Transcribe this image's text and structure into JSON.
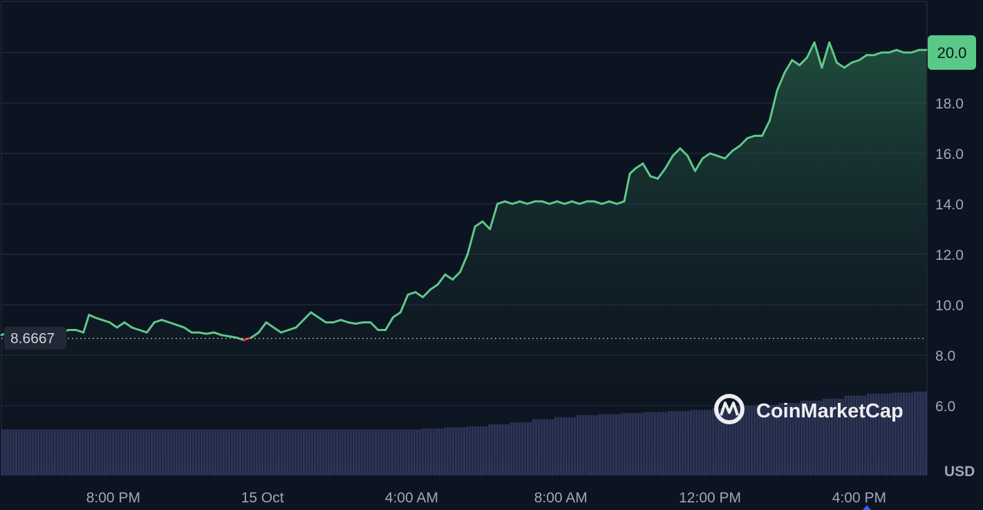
{
  "chart_data": {
    "type": "area",
    "currency": "USD",
    "ylim": [
      3.6,
      21.9
    ],
    "y_ticks": [
      "6.0",
      "8.0",
      "10.0",
      "12.0",
      "14.0",
      "16.0",
      "18.0",
      "20.0"
    ],
    "x_labels": [
      "8:00 PM",
      "15 Oct",
      "4:00 AM",
      "8:00 AM",
      "12:00 PM",
      "4:00 PM"
    ],
    "x_label_positions_hours": [
      3,
      7,
      11,
      15,
      19,
      23
    ],
    "x_range_hours": [
      0,
      24.8
    ],
    "reference_price": 8.6667,
    "reference_label": "8.6667",
    "current_price_label": "20.0",
    "grid": true,
    "series": [
      {
        "points": [
          [
            0.0,
            8.8
          ],
          [
            0.2,
            8.9
          ],
          [
            0.4,
            8.8
          ],
          [
            0.6,
            8.8
          ],
          [
            0.8,
            8.8
          ],
          [
            1.0,
            8.9
          ],
          [
            1.2,
            8.9
          ],
          [
            1.4,
            8.8
          ],
          [
            1.6,
            8.9
          ],
          [
            1.8,
            9.0
          ],
          [
            2.0,
            9.0
          ],
          [
            2.2,
            8.9
          ],
          [
            2.35,
            9.6
          ],
          [
            2.5,
            9.5
          ],
          [
            2.7,
            9.4
          ],
          [
            2.9,
            9.3
          ],
          [
            3.1,
            9.1
          ],
          [
            3.3,
            9.3
          ],
          [
            3.5,
            9.1
          ],
          [
            3.7,
            9.0
          ],
          [
            3.9,
            8.9
          ],
          [
            4.1,
            9.3
          ],
          [
            4.3,
            9.4
          ],
          [
            4.5,
            9.3
          ],
          [
            4.7,
            9.2
          ],
          [
            4.9,
            9.1
          ],
          [
            5.1,
            8.9
          ],
          [
            5.3,
            8.9
          ],
          [
            5.5,
            8.85
          ],
          [
            5.7,
            8.9
          ],
          [
            5.9,
            8.8
          ],
          [
            6.1,
            8.75
          ],
          [
            6.3,
            8.7
          ],
          [
            6.5,
            8.6
          ],
          [
            6.7,
            8.7
          ],
          [
            6.9,
            8.9
          ],
          [
            7.1,
            9.3
          ],
          [
            7.3,
            9.1
          ],
          [
            7.5,
            8.9
          ],
          [
            7.7,
            9.0
          ],
          [
            7.9,
            9.1
          ],
          [
            8.1,
            9.4
          ],
          [
            8.3,
            9.7
          ],
          [
            8.5,
            9.5
          ],
          [
            8.7,
            9.3
          ],
          [
            8.9,
            9.3
          ],
          [
            9.1,
            9.4
          ],
          [
            9.3,
            9.3
          ],
          [
            9.5,
            9.25
          ],
          [
            9.7,
            9.3
          ],
          [
            9.9,
            9.3
          ],
          [
            10.1,
            9.0
          ],
          [
            10.3,
            9.0
          ],
          [
            10.5,
            9.5
          ],
          [
            10.7,
            9.7
          ],
          [
            10.9,
            10.4
          ],
          [
            11.1,
            10.5
          ],
          [
            11.3,
            10.3
          ],
          [
            11.5,
            10.6
          ],
          [
            11.7,
            10.8
          ],
          [
            11.9,
            11.2
          ],
          [
            12.1,
            11.0
          ],
          [
            12.3,
            11.3
          ],
          [
            12.5,
            12.0
          ],
          [
            12.7,
            13.1
          ],
          [
            12.9,
            13.3
          ],
          [
            13.1,
            13.0
          ],
          [
            13.3,
            14.0
          ],
          [
            13.5,
            14.1
          ],
          [
            13.7,
            14.0
          ],
          [
            13.9,
            14.1
          ],
          [
            14.1,
            14.0
          ],
          [
            14.3,
            14.1
          ],
          [
            14.5,
            14.1
          ],
          [
            14.7,
            14.0
          ],
          [
            14.9,
            14.1
          ],
          [
            15.1,
            14.0
          ],
          [
            15.3,
            14.1
          ],
          [
            15.5,
            14.0
          ],
          [
            15.7,
            14.1
          ],
          [
            15.9,
            14.1
          ],
          [
            16.1,
            14.0
          ],
          [
            16.3,
            14.1
          ],
          [
            16.5,
            14.0
          ],
          [
            16.7,
            14.1
          ],
          [
            16.85,
            15.2
          ],
          [
            17.0,
            15.4
          ],
          [
            17.2,
            15.6
          ],
          [
            17.4,
            15.1
          ],
          [
            17.6,
            15.0
          ],
          [
            17.8,
            15.4
          ],
          [
            18.0,
            15.9
          ],
          [
            18.2,
            16.2
          ],
          [
            18.4,
            15.9
          ],
          [
            18.6,
            15.3
          ],
          [
            18.8,
            15.8
          ],
          [
            19.0,
            16.0
          ],
          [
            19.2,
            15.9
          ],
          [
            19.4,
            15.8
          ],
          [
            19.6,
            16.1
          ],
          [
            19.8,
            16.3
          ],
          [
            20.0,
            16.6
          ],
          [
            20.2,
            16.7
          ],
          [
            20.4,
            16.7
          ],
          [
            20.6,
            17.3
          ],
          [
            20.8,
            18.5
          ],
          [
            21.0,
            19.2
          ],
          [
            21.2,
            19.7
          ],
          [
            21.4,
            19.5
          ],
          [
            21.6,
            19.8
          ],
          [
            21.8,
            20.4
          ],
          [
            22.0,
            19.4
          ],
          [
            22.2,
            20.4
          ],
          [
            22.4,
            19.6
          ],
          [
            22.6,
            19.4
          ],
          [
            22.8,
            19.6
          ],
          [
            23.0,
            19.7
          ],
          [
            23.2,
            19.9
          ],
          [
            23.4,
            19.9
          ],
          [
            23.6,
            20.0
          ],
          [
            23.8,
            20.0
          ],
          [
            24.0,
            20.1
          ],
          [
            24.2,
            20.0
          ],
          [
            24.4,
            20.0
          ],
          [
            24.6,
            20.1
          ],
          [
            24.8,
            20.1
          ]
        ]
      }
    ],
    "volume": {
      "values": [
        [
          0.0,
          0.45
        ],
        [
          2.0,
          0.45
        ],
        [
          4.0,
          0.45
        ],
        [
          6.0,
          0.45
        ],
        [
          8.0,
          0.45
        ],
        [
          10.0,
          0.45
        ],
        [
          11.2,
          0.46
        ],
        [
          11.8,
          0.47
        ],
        [
          12.4,
          0.48
        ],
        [
          13.0,
          0.5
        ],
        [
          13.6,
          0.52
        ],
        [
          14.2,
          0.55
        ],
        [
          14.8,
          0.57
        ],
        [
          15.4,
          0.59
        ],
        [
          16.0,
          0.6
        ],
        [
          16.6,
          0.61
        ],
        [
          17.2,
          0.62
        ],
        [
          17.8,
          0.63
        ],
        [
          18.4,
          0.64
        ],
        [
          19.0,
          0.66
        ],
        [
          19.6,
          0.68
        ],
        [
          20.2,
          0.69
        ],
        [
          20.8,
          0.71
        ],
        [
          21.4,
          0.73
        ],
        [
          22.0,
          0.75
        ],
        [
          22.6,
          0.78
        ],
        [
          23.2,
          0.8
        ],
        [
          23.8,
          0.81
        ],
        [
          24.4,
          0.82
        ],
        [
          24.8,
          0.83
        ]
      ]
    },
    "colors": {
      "up": "#16c784",
      "line_up": "#5fc98a",
      "line_down": "#ea3943",
      "volume": "#2d3558",
      "grid": "#2a2f3e",
      "background": "#0d1421",
      "price_tag": "#5ac887"
    }
  },
  "watermark": {
    "text": "CoinMarketCap",
    "icon": "coinmarketcap-logo-icon"
  }
}
